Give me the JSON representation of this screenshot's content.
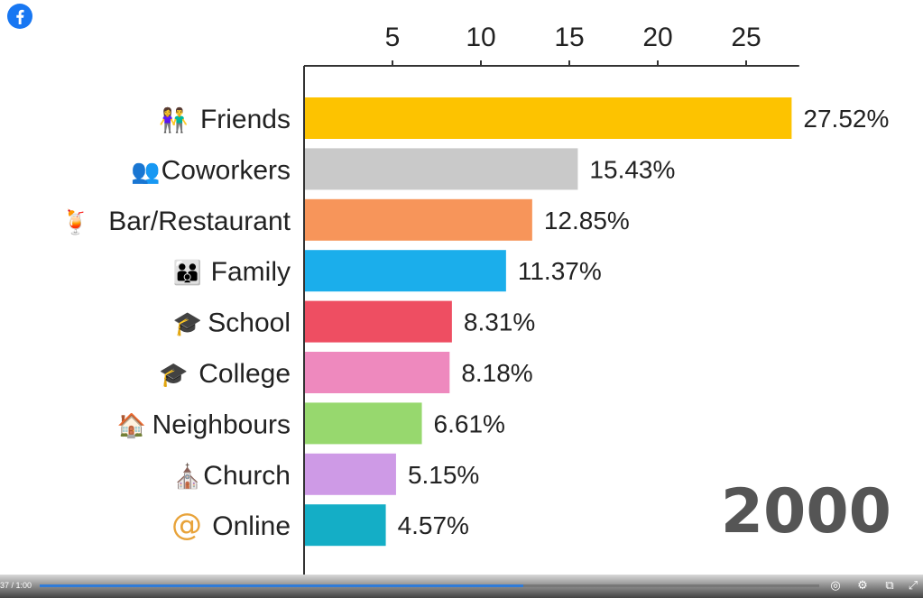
{
  "brand": {
    "icon": "facebook-icon",
    "color": "#1877F2"
  },
  "chart_data": {
    "type": "bar",
    "orientation": "horizontal",
    "title": "",
    "xlim": [
      0,
      28
    ],
    "x_ticks": [
      5,
      10,
      15,
      20,
      25
    ],
    "x_tick_labels": [
      "5",
      "10",
      "15",
      "20",
      "25"
    ],
    "categories": [
      "Friends",
      "Coworkers",
      "Bar/Restaurant",
      "Family",
      "School",
      "College",
      "Neighbours",
      "Church",
      "Online"
    ],
    "values": [
      27.52,
      15.43,
      12.85,
      11.37,
      8.31,
      8.18,
      6.61,
      5.15,
      4.57
    ],
    "value_labels": [
      "27.52%",
      "15.43%",
      "12.85%",
      "11.37%",
      "8.31%",
      "8.18%",
      "6.61%",
      "5.15%",
      "4.57%"
    ],
    "colors": [
      "#FDC300",
      "#C9C9C9",
      "#F7955A",
      "#1BAEEB",
      "#EE4E62",
      "#EE89BE",
      "#97D86E",
      "#CE9AE6",
      "#14AEC6"
    ],
    "icons": [
      "friends-icon",
      "coworkers-icon",
      "drink-icon",
      "family-icon",
      "graduation-cap-icon",
      "graduate-icon",
      "house-icon",
      "church-icon",
      "at-sign-icon"
    ],
    "year": "2000",
    "grid": false,
    "legend": "none"
  },
  "player": {
    "time": "37 / 1:00",
    "progress": 0.62,
    "icons": [
      "captions-icon",
      "settings-icon",
      "pip-icon",
      "fullscreen-icon"
    ]
  }
}
